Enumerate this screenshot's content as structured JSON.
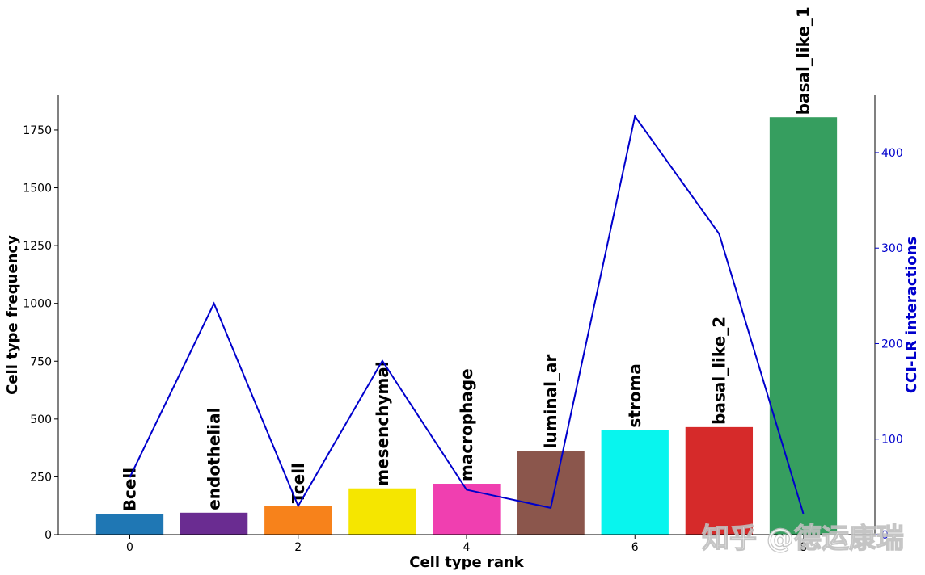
{
  "chart_data": {
    "type": "bar",
    "title": "",
    "xlabel": "Cell type rank",
    "ylabel": "Cell type frequency",
    "y2label": "CCI-LR interactions",
    "x": [
      0,
      1,
      2,
      3,
      4,
      5,
      6,
      7,
      8
    ],
    "categories": [
      "Bcell",
      "endothelial",
      "Tcell",
      "mesenchymal",
      "macrophage",
      "luminal_ar",
      "stroma",
      "basal_like_2",
      "basal_like_1"
    ],
    "x_ticks": [
      "0",
      "2",
      "4",
      "6",
      "8"
    ],
    "x_tick_values": [
      0,
      2,
      4,
      6,
      8
    ],
    "xlim": [
      -0.85,
      8.85
    ],
    "ylim": [
      0,
      1900
    ],
    "y_ticks": [
      "0",
      "250",
      "500",
      "750",
      "1000",
      "1250",
      "1500",
      "1750"
    ],
    "y_tick_values": [
      0,
      250,
      500,
      750,
      1000,
      1250,
      1500,
      1750
    ],
    "y2lim": [
      0,
      460
    ],
    "y2_ticks": [
      "0",
      "100",
      "200",
      "300",
      "400"
    ],
    "y2_tick_values": [
      0,
      100,
      200,
      300,
      400
    ],
    "bar_values": [
      90,
      95,
      125,
      200,
      220,
      362,
      452,
      465,
      1805
    ],
    "bar_colors": [
      "#1f77b4",
      "#6a2c91",
      "#f7821b",
      "#f5e600",
      "#f03fb0",
      "#8b564c",
      "#08f5ee",
      "#d62a2a",
      "#369e5f"
    ],
    "line_values": [
      60,
      242,
      30,
      182,
      47,
      28,
      438,
      315,
      22
    ],
    "line_color": "#0000cc",
    "right_axis_color": "#0000cc",
    "grid": false,
    "legend": "none"
  },
  "watermark": "知乎 @德运康瑞"
}
